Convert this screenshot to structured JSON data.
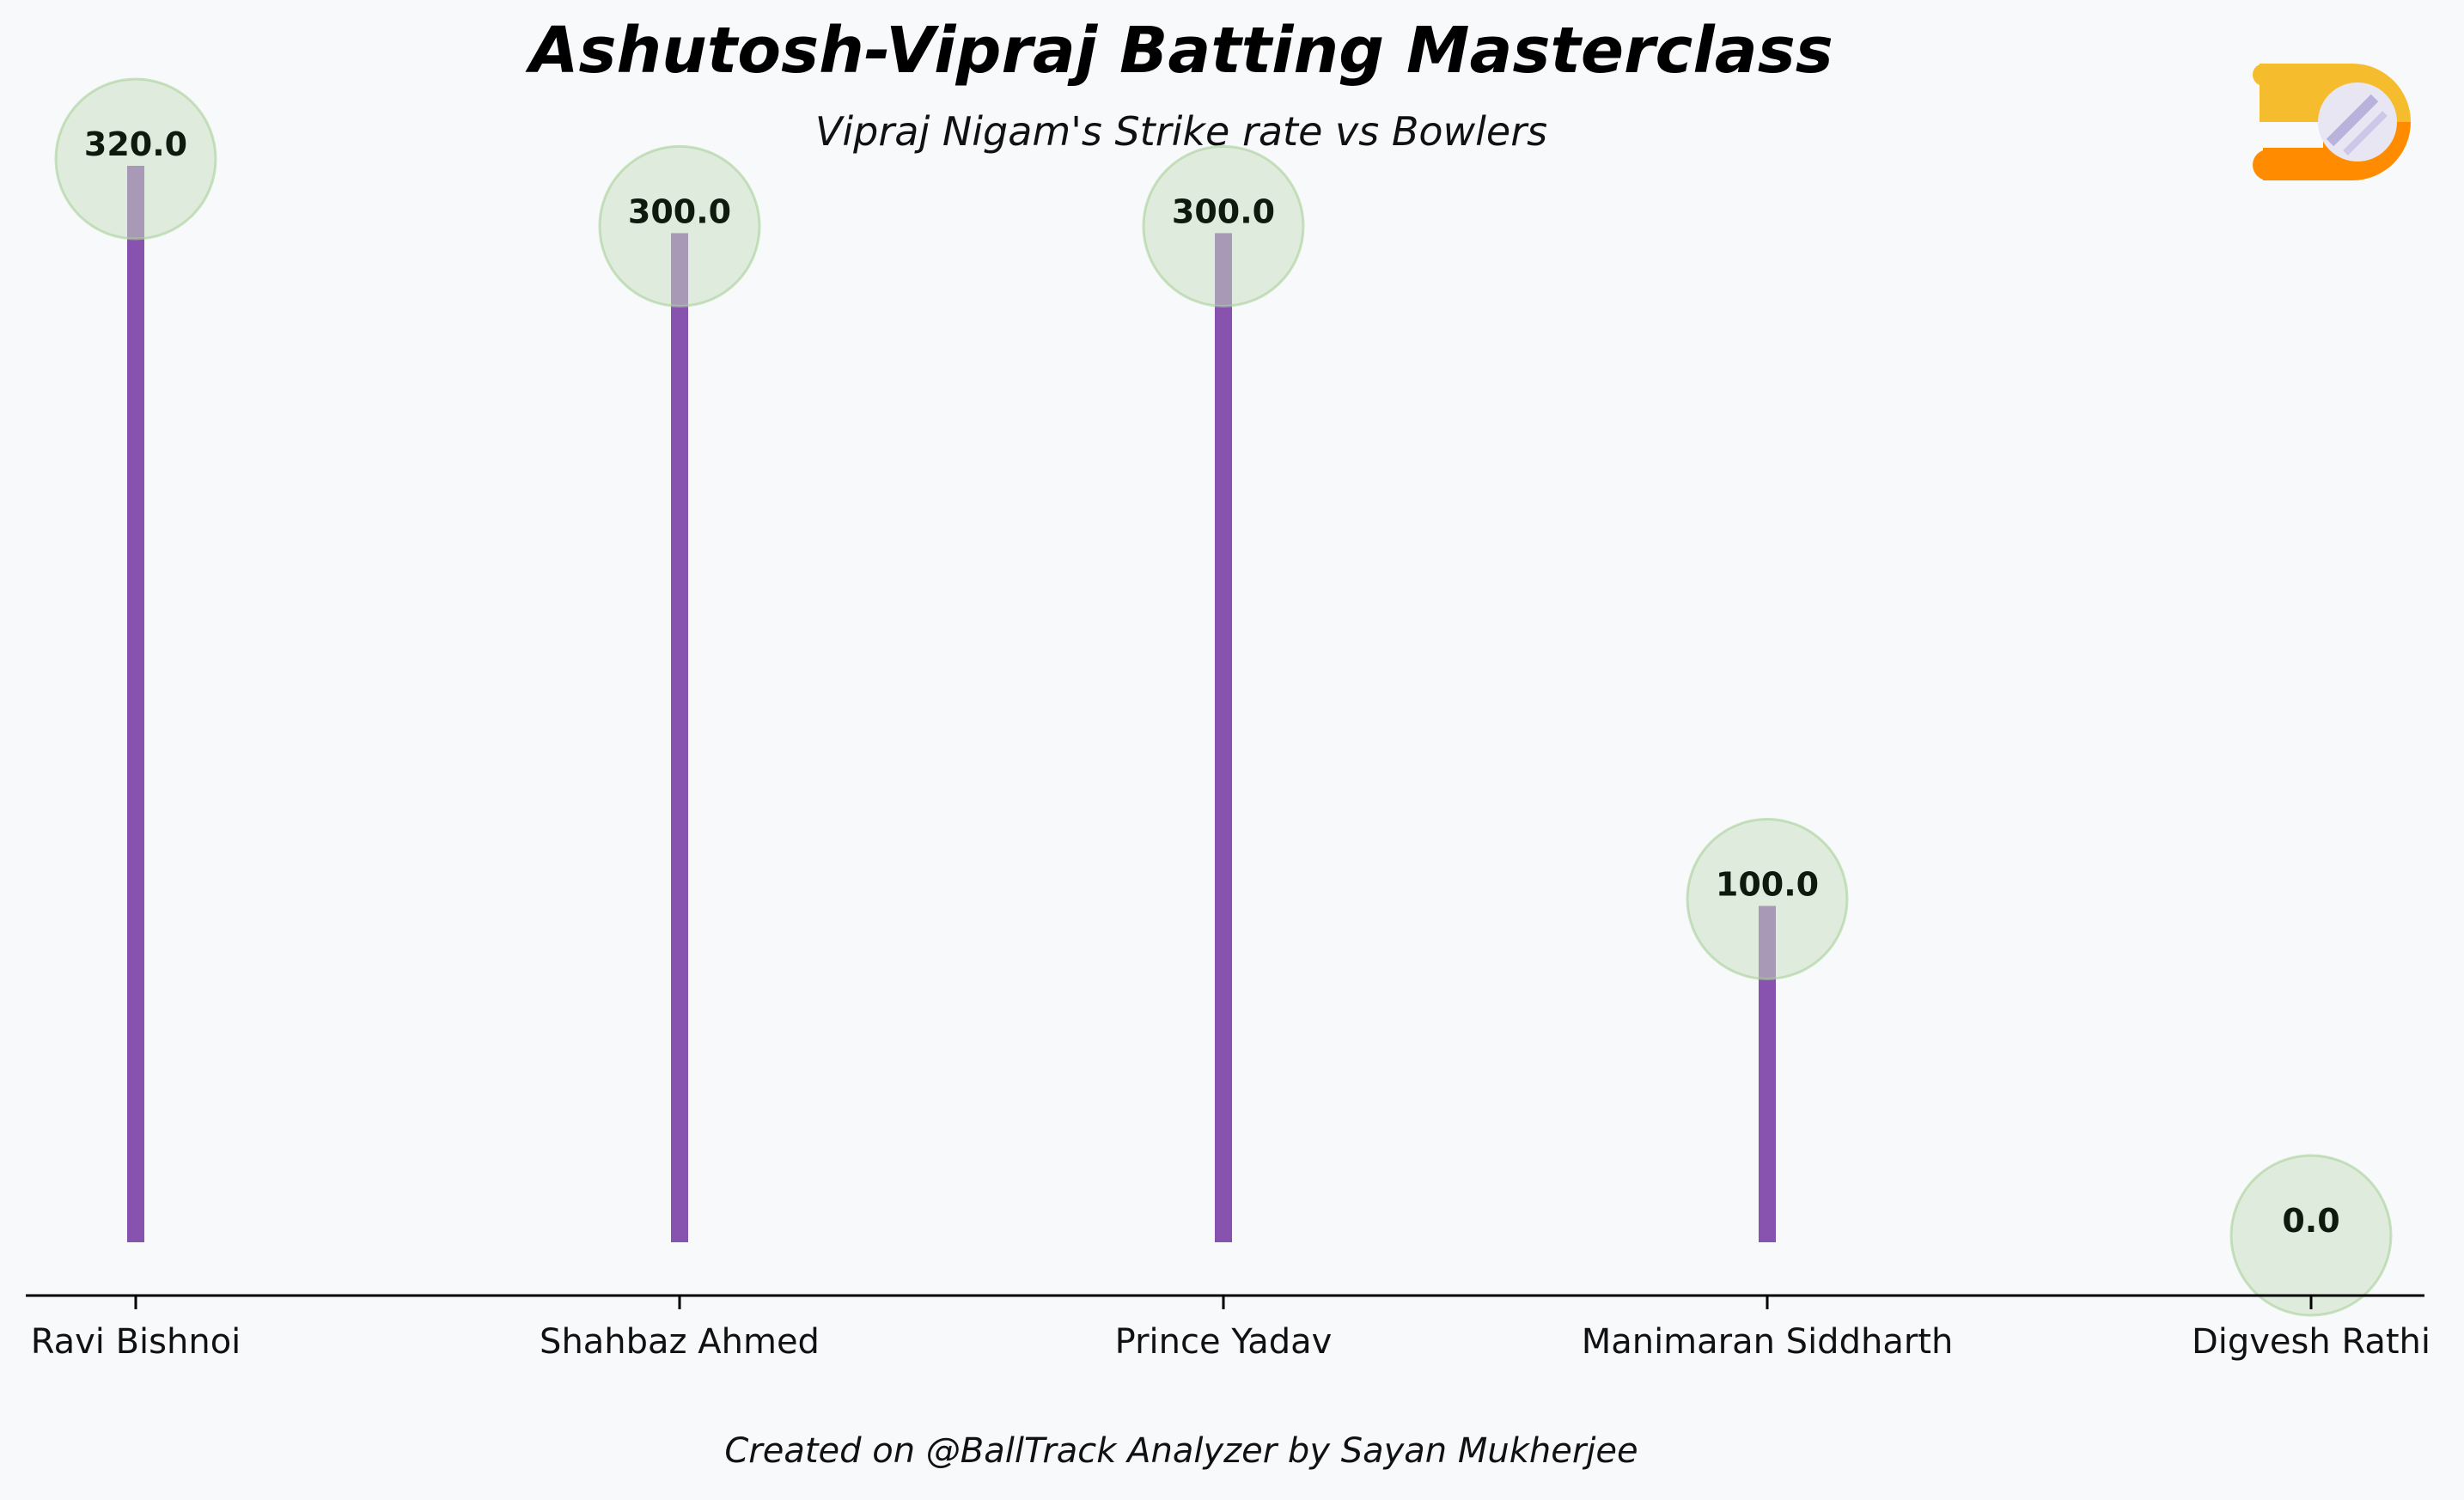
{
  "chart_data": {
    "type": "lollipop",
    "title": "Ashutosh-Vipraj Batting Masterclass",
    "subtitle": "Vipraj Nigam's Strike rate vs Bowlers",
    "categories": [
      "Ravi Bishnoi",
      "Shahbaz Ahmed",
      "Prince Yadav",
      "Manimaran Siddharth",
      "Digvesh Rathi"
    ],
    "values": [
      320.0,
      300.0,
      300.0,
      100.0,
      0.0
    ],
    "data_labels": [
      "320.0",
      "300.0",
      "300.0",
      "100.0",
      "0.0"
    ],
    "xlabel": "",
    "ylabel": "",
    "ylim": [
      0,
      320
    ],
    "grid": false,
    "legend": "none",
    "colors": {
      "stem": "#7b3fa6",
      "marker": "#c8e0c0",
      "axis": "#000000"
    }
  },
  "footer": {
    "credit": "Created on @BallTrack Analyzer by Sayan Mukherjee"
  },
  "logo": {
    "icon": "balltrack-logo-icon",
    "colors": [
      "#f5bd2e",
      "#ff8c00",
      "#e8e6f2"
    ]
  }
}
